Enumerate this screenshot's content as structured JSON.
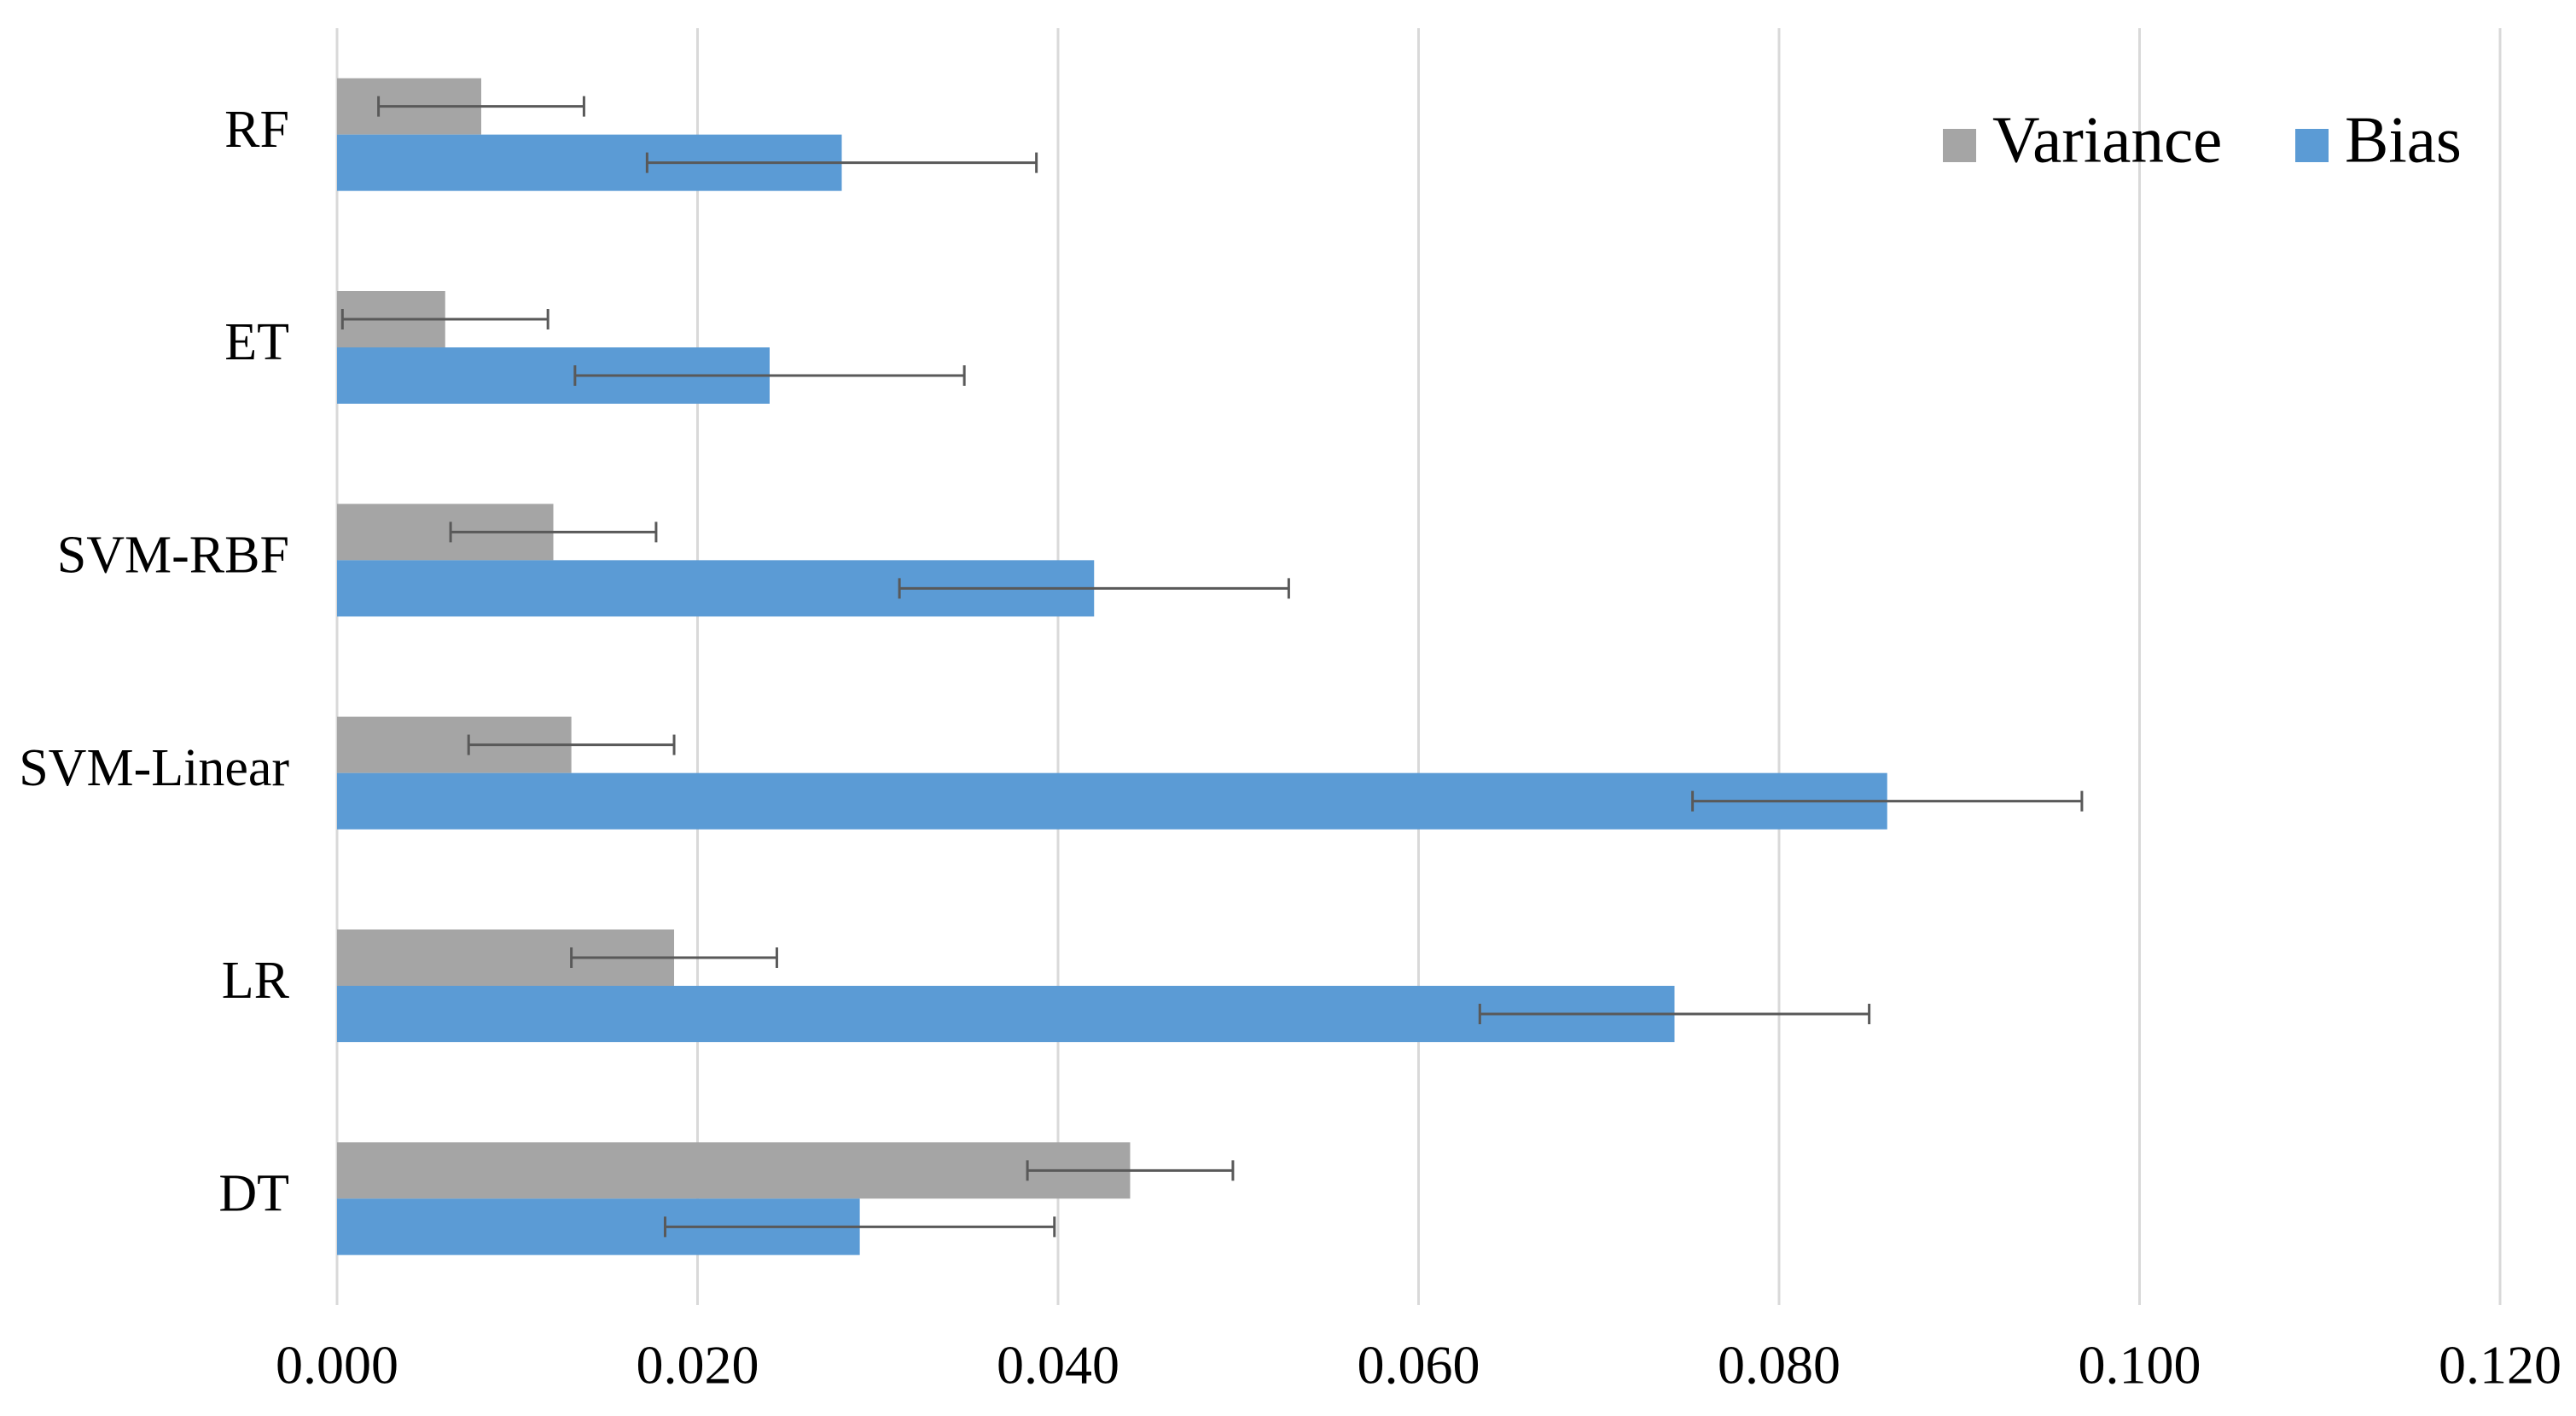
{
  "chart_data": {
    "type": "barh",
    "categories": [
      "RF",
      "ET",
      "SVM-RBF",
      "SVM-Linear",
      "LR",
      "DT"
    ],
    "series": [
      {
        "name": "Variance",
        "color": "#a5a5a5",
        "values": [
          0.008,
          0.006,
          0.012,
          0.013,
          0.0187,
          0.044
        ],
        "errors": [
          0.0057,
          0.0057,
          0.0057,
          0.0057,
          0.0057,
          0.0057
        ]
      },
      {
        "name": "Bias",
        "color": "#5b9bd5",
        "values": [
          0.028,
          0.024,
          0.042,
          0.086,
          0.0742,
          0.029
        ],
        "errors": [
          0.0108,
          0.0108,
          0.0108,
          0.0108,
          0.0108,
          0.0108
        ]
      }
    ],
    "xlim": [
      0,
      0.12
    ],
    "xticks": [
      {
        "value": 0,
        "label": "0.000"
      },
      {
        "value": 0.02,
        "label": "0.020"
      },
      {
        "value": 0.04,
        "label": "0.040"
      },
      {
        "value": 0.06,
        "label": "0.060"
      },
      {
        "value": 0.08,
        "label": "0.080"
      },
      {
        "value": 0.1,
        "label": "0.100"
      },
      {
        "value": 0.12,
        "label": "0.120"
      }
    ],
    "grid": true,
    "legend": "upper right"
  }
}
